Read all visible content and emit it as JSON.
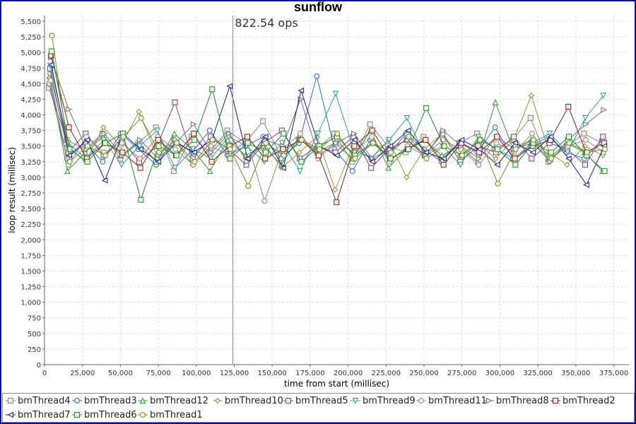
{
  "chart_data": {
    "type": "line",
    "title": "sunflow",
    "xlabel": "time from start (millisec)",
    "ylabel": "loop result (millisec)",
    "xlim": [
      0,
      385000
    ],
    "ylim": [
      0,
      5500
    ],
    "xticks": [
      "0",
      "25,000",
      "50,000",
      "75,000",
      "100,000",
      "125,000",
      "150,000",
      "175,000",
      "200,000",
      "225,000",
      "250,000",
      "275,000",
      "300,000",
      "325,000",
      "350,000",
      "375,000"
    ],
    "yticks": [
      "0",
      "250",
      "500",
      "750",
      "1,000",
      "1,250",
      "1,500",
      "1,750",
      "2,000",
      "2,250",
      "2,500",
      "2,750",
      "3,000",
      "3,250",
      "3,500",
      "3,750",
      "4,000",
      "4,250",
      "4,500",
      "4,750",
      "5,000",
      "5,250",
      "5,500"
    ],
    "grid": true,
    "legend_position": "bottom",
    "annotation": {
      "text": "822.54 ops",
      "x": 124000
    },
    "x": [
      4000,
      15750,
      27500,
      39250,
      51000,
      62750,
      74500,
      86250,
      98000,
      109750,
      121500,
      133250,
      145000,
      156750,
      168500,
      180250,
      192000,
      203750,
      215500,
      227250,
      239000,
      250750,
      262500,
      274250,
      286000,
      297750,
      309500,
      321250,
      333000,
      344750,
      356500,
      368250
    ],
    "series": [
      {
        "name": "bmThread4",
        "color": "#9a7f7f",
        "marker": "square",
        "values": [
          4430,
          3600,
          3450,
          3700,
          3300,
          3550,
          3800,
          3100,
          3650,
          3400,
          3750,
          3550,
          3900,
          3350,
          3600,
          3450,
          3700,
          3250,
          3850,
          3500,
          3400,
          3650,
          3300,
          3550,
          3700,
          3450,
          3600,
          3950,
          3250,
          3500,
          3700,
          3550
        ]
      },
      {
        "name": "bmThread3",
        "color": "#3366cc",
        "marker": "circle",
        "values": [
          4500,
          3300,
          3550,
          3250,
          3700,
          3450,
          3200,
          3600,
          3400,
          3750,
          3350,
          3500,
          3650,
          3300,
          3550,
          4620,
          3450,
          3100,
          3600,
          3350,
          3700,
          3450,
          3250,
          3550,
          3400,
          3800,
          3300,
          3500,
          3650,
          3400,
          3300,
          3600
        ]
      },
      {
        "name": "bmThread12",
        "color": "#2e9a2e",
        "marker": "triangle-up",
        "values": [
          4620,
          3100,
          3400,
          3650,
          3350,
          3550,
          3250,
          3700,
          3450,
          3100,
          3600,
          3350,
          3500,
          3200,
          3650,
          3400,
          3550,
          3300,
          3750,
          3150,
          3450,
          3600,
          3350,
          3500,
          3250,
          4200,
          3450,
          3600,
          3300,
          3550,
          3400,
          3100
        ]
      },
      {
        "name": "bmThread10",
        "color": "#8c9a3a",
        "marker": "diamond",
        "values": [
          4660,
          3500,
          3250,
          3800,
          3500,
          4050,
          3350,
          3600,
          3200,
          3450,
          3700,
          3300,
          3550,
          3150,
          3400,
          3650,
          2800,
          3500,
          3300,
          3600,
          3000,
          3450,
          3700,
          3350,
          3550,
          3300,
          3600,
          4310,
          3400,
          3200,
          3500,
          3350
        ]
      },
      {
        "name": "bmThread5",
        "color": "#8a3a8a",
        "marker": "square",
        "values": [
          4740,
          3400,
          3700,
          3350,
          3600,
          3250,
          3500,
          4200,
          3300,
          3650,
          3450,
          3200,
          3550,
          3750,
          3300,
          3500,
          3400,
          3650,
          3150,
          3450,
          3600,
          3350,
          3700,
          3250,
          3500,
          3400,
          3650,
          3300,
          3550,
          3450,
          3200,
          3650
        ]
      },
      {
        "name": "bmThread9",
        "color": "#2aa0a0",
        "marker": "triangle-down",
        "values": [
          4790,
          3550,
          3300,
          3600,
          3200,
          3500,
          3750,
          3150,
          3450,
          3300,
          3650,
          3500,
          3250,
          3550,
          3100,
          3700,
          4340,
          3450,
          3300,
          3600,
          3950,
          3350,
          3500,
          3200,
          3650,
          3450,
          3300,
          3550,
          3700,
          3400,
          3950,
          4310
        ]
      },
      {
        "name": "bmThread11",
        "color": "#a08080",
        "marker": "circle",
        "values": [
          4550,
          3200,
          3650,
          3400,
          3550,
          3300,
          3650,
          3450,
          3200,
          3500,
          3350,
          3600,
          2620,
          3450,
          3700,
          3300,
          3550,
          3400,
          3650,
          3250,
          3500,
          3350,
          3600,
          3450,
          3200,
          3550,
          3400,
          3700,
          3300,
          3500,
          3600,
          3400
        ]
      },
      {
        "name": "bmThread8",
        "color": "#707080",
        "marker": "triangle-right",
        "values": [
          4920,
          4090,
          3450,
          3700,
          3350,
          3600,
          3300,
          3550,
          3850,
          3400,
          3700,
          3250,
          3600,
          3500,
          4250,
          3350,
          3550,
          3700,
          3300,
          3450,
          3600,
          3350,
          3750,
          3500,
          3300,
          3650,
          3450,
          3550,
          3250,
          3600,
          3850,
          4080
        ]
      },
      {
        "name": "bmThread2",
        "color": "#8b1a1a",
        "marker": "square",
        "values": [
          4950,
          3800,
          3300,
          3550,
          3400,
          3150,
          3600,
          3350,
          3700,
          3250,
          3500,
          3650,
          3300,
          3450,
          3600,
          3350,
          2600,
          3500,
          3750,
          3300,
          3450,
          3600,
          3200,
          3550,
          3400,
          3650,
          3300,
          3500,
          3600,
          4130,
          3400,
          3550
        ]
      },
      {
        "name": "bmThread7",
        "color": "#1a1a8b",
        "marker": "triangle-left",
        "values": [
          4800,
          3350,
          3600,
          2950,
          3700,
          3450,
          3250,
          3550,
          3400,
          3600,
          4460,
          3300,
          3650,
          3150,
          4390,
          3500,
          3350,
          3600,
          3250,
          3500,
          3750,
          3400,
          3300,
          3600,
          3450,
          3200,
          3550,
          3400,
          3650,
          3300,
          2880,
          3500
        ]
      },
      {
        "name": "bmThread6",
        "color": "#1a8b2a",
        "marker": "square",
        "values": [
          5020,
          3450,
          3250,
          3550,
          3700,
          2640,
          3500,
          3350,
          3600,
          4410,
          3300,
          3550,
          3400,
          3700,
          3250,
          3500,
          3650,
          3350,
          3550,
          3300,
          3450,
          4110,
          3500,
          3350,
          3600,
          3450,
          3200,
          3550,
          3400,
          3650,
          3350,
          3100
        ]
      },
      {
        "name": "bmThread1",
        "color": "#7a8a20",
        "marker": "circle",
        "values": [
          5270,
          3250,
          3500,
          3350,
          3650,
          3950,
          3400,
          3550,
          3250,
          3600,
          3450,
          2860,
          3550,
          3350,
          3600,
          3450,
          3700,
          3300,
          3550,
          3400,
          3650,
          3300,
          3500,
          3350,
          3600,
          2900,
          3450,
          3600,
          3300,
          3550,
          3400,
          3450
        ]
      }
    ]
  }
}
